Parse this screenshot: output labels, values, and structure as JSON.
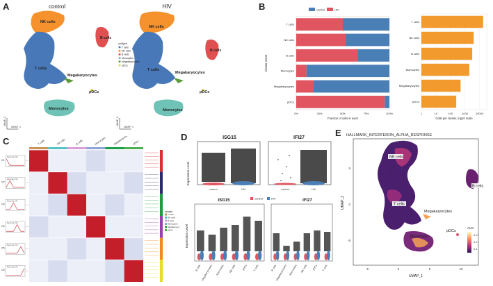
{
  "panels": {
    "a": "A",
    "b": "B",
    "c": "C",
    "d": "D",
    "e": "E"
  },
  "panel_a": {
    "left_title": "control",
    "right_title": "HIV",
    "umap1": "UMAP_1",
    "umap2": "UMAP_2",
    "labels": {
      "nk": "NK cells",
      "t": "T cells",
      "b": "B cells",
      "mk": "Megakaryocytes",
      "pdc": "pDCs",
      "mono": "Monocytes"
    },
    "legend_title": "celltype",
    "legend_items": [
      {
        "label": "T cells",
        "color": "#4878b8"
      },
      {
        "label": "NK cells",
        "color": "#f5922e"
      },
      {
        "label": "B cells",
        "color": "#e05050"
      },
      {
        "label": "Monocytes",
        "color": "#6ec3b6"
      },
      {
        "label": "Megakaryocytes",
        "color": "#5a9a3a"
      },
      {
        "label": "pDCs",
        "color": "#e8d448"
      }
    ]
  },
  "chart_data": [
    {
      "type": "bar",
      "title": "",
      "orientation": "horizontal-stacked",
      "categories": [
        "T cells",
        "NK cells",
        "B cells",
        "Monocytes",
        "Megakaryocytes",
        "pDCs"
      ],
      "series": [
        {
          "name": "HIV",
          "color": "#e05560",
          "values": [
            0.5,
            0.53,
            0.66,
            0.11,
            0.18,
            0.95
          ]
        },
        {
          "name": "control",
          "color": "#4a7fb5",
          "values": [
            0.5,
            0.47,
            0.34,
            0.89,
            0.82,
            0.05
          ]
        }
      ],
      "xlabel": "Fraction of cells in each",
      "ylabel": "Cluster name",
      "xticks": [
        "0%",
        "25%",
        "50%",
        "75%",
        "100%"
      ],
      "legend_names": [
        "control",
        "HIV"
      ]
    },
    {
      "type": "bar",
      "orientation": "horizontal",
      "categories": [
        "T cells",
        "NK cells",
        "B cells",
        "Monocytes",
        "Megakaryocytes",
        "pDCs"
      ],
      "values": [
        4.25,
        3.6,
        3.5,
        3.3,
        2.7,
        2.4
      ],
      "color": "#f29a2e",
      "xlabel": "Cells per cluster, log10 scale",
      "xticks": [
        "1",
        "10",
        "100",
        "1000",
        "10000"
      ],
      "xlim": [
        0,
        4.5
      ]
    }
  ],
  "panel_c": {
    "top_labels": [
      "T cells",
      "NK cells",
      "B cells",
      "Monocytes",
      "Megakaryocytes",
      "pDCs"
    ],
    "top_colors": [
      "#c9935a",
      "#57c2c9",
      "#d9a0d8",
      "#8fa3d9",
      "#1aa04a",
      "#4caf50"
    ],
    "clusters": [
      "C1",
      "C2",
      "C3",
      "C4",
      "C5",
      "C6"
    ],
    "mini_title": "Mean Exp. 6%",
    "side_colors": [
      "#d83030",
      "#2b2a6e",
      "#1f9a3e",
      "#9a3fb0",
      "#f08a1a",
      "#e8dc28"
    ],
    "legend_title": "sample",
    "legend_items": [
      "T cells",
      "NK cells",
      "B cells",
      "Monocytes",
      "Megakaryocytes",
      "pDCs"
    ]
  },
  "panel_d": {
    "top_left_title": "ISG15",
    "top_right_title": "IFI27",
    "ylabel": "Expression Level",
    "x_top": [
      "control",
      "HIV"
    ],
    "bottom_left_title": "ISG15",
    "bottom_right_title": "IFI27",
    "legend": [
      {
        "label": "control",
        "color": "#e05560"
      },
      {
        "label": "HIV",
        "color": "#4a7fb5"
      }
    ],
    "x_bottom": [
      "B cells",
      "Megakaryocytes",
      "Monocytes",
      "NK cells",
      "pDCs",
      "T cells"
    ]
  },
  "panel_e": {
    "title": "HALLMARK_INTERFERON_ALPHA_RESPONSE",
    "xlabel": "UMAP_1",
    "ylabel": "UMAP_2",
    "xticks": [
      "-5",
      "0",
      "5",
      "10"
    ],
    "yticks": [
      "5",
      "0",
      "-5"
    ],
    "labels": {
      "nk": "NK cells",
      "t": "T cells",
      "b": "B cells",
      "mk": "Megakaryocytes",
      "pdc": "pDCs",
      "mono": "Monocytes"
    },
    "legend_title": "AUC",
    "legend_ticks": [
      "0.3",
      "0.2",
      "0.1"
    ]
  }
}
